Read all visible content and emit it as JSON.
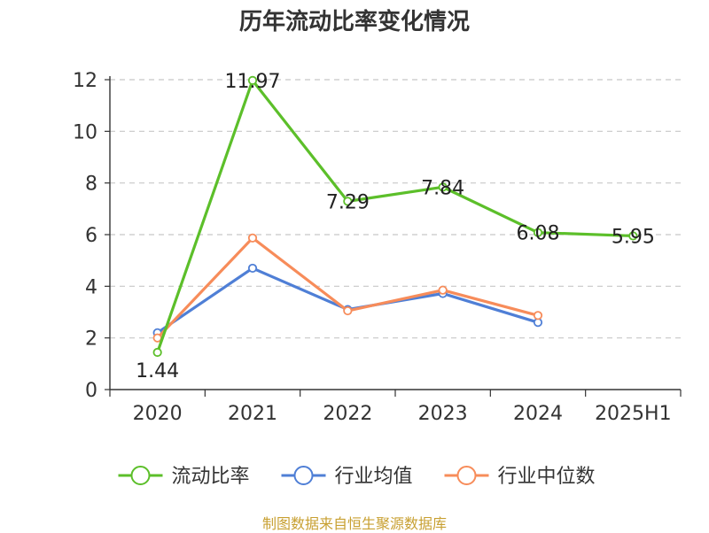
{
  "chart_data": {
    "type": "line",
    "title": "历年流动比率变化情况",
    "categories": [
      "2020",
      "2021",
      "2022",
      "2023",
      "2024",
      "2025H1"
    ],
    "series": [
      {
        "name": "流动比率",
        "color": "#5cbf2a",
        "values": [
          1.44,
          11.97,
          7.29,
          7.84,
          6.08,
          5.95
        ],
        "data_labels": [
          "1.44",
          "11.97",
          "7.29",
          "7.84",
          "6.08",
          "5.95"
        ]
      },
      {
        "name": "行业均值",
        "color": "#4f7fd6",
        "values": [
          2.2,
          4.7,
          3.1,
          3.72,
          2.6,
          null
        ]
      },
      {
        "name": "行业中位数",
        "color": "#f78c5a",
        "values": [
          2.0,
          5.87,
          3.05,
          3.85,
          2.87,
          null
        ]
      }
    ],
    "y_ticks": [
      "0",
      "2",
      "4",
      "6",
      "8",
      "10",
      "12"
    ],
    "ylim": [
      0,
      12
    ],
    "grid": true,
    "legend_position": "bottom"
  },
  "source_note": "制图数据来自恒生聚源数据库"
}
